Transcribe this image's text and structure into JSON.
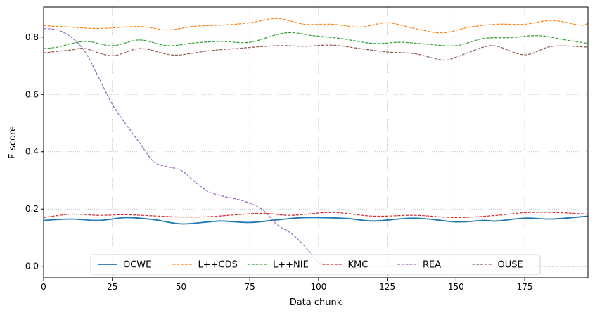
{
  "chart_data": {
    "type": "line",
    "xlabel": "Data chunk",
    "ylabel": "F-score",
    "xlim": [
      0,
      198
    ],
    "ylim": [
      -0.04,
      0.905
    ],
    "xticks": [
      0,
      25,
      50,
      75,
      100,
      125,
      150,
      175
    ],
    "yticks": [
      0.0,
      0.2,
      0.4,
      0.6,
      0.8
    ],
    "ytick_labels": [
      "0.0",
      "0.2",
      "0.4",
      "0.6",
      "0.8"
    ],
    "grid": true,
    "legend_position": "bottom-center",
    "series": [
      {
        "name": "OCWE",
        "color": "#1f77b4",
        "style": "solid",
        "points": [
          [
            0,
            0.16
          ],
          [
            10,
            0.165
          ],
          [
            20,
            0.16
          ],
          [
            30,
            0.17
          ],
          [
            40,
            0.163
          ],
          [
            50,
            0.148
          ],
          [
            60,
            0.155
          ],
          [
            65,
            0.158
          ],
          [
            75,
            0.153
          ],
          [
            85,
            0.162
          ],
          [
            95,
            0.17
          ],
          [
            110,
            0.167
          ],
          [
            120,
            0.158
          ],
          [
            135,
            0.168
          ],
          [
            150,
            0.155
          ],
          [
            160,
            0.16
          ],
          [
            165,
            0.158
          ],
          [
            175,
            0.168
          ],
          [
            185,
            0.165
          ],
          [
            198,
            0.175
          ]
        ]
      },
      {
        "name": "L++CDS",
        "color": "#ff7f0e",
        "style": "dashed",
        "points": [
          [
            0,
            0.84
          ],
          [
            10,
            0.835
          ],
          [
            20,
            0.83
          ],
          [
            35,
            0.837
          ],
          [
            45,
            0.825
          ],
          [
            55,
            0.838
          ],
          [
            65,
            0.842
          ],
          [
            75,
            0.85
          ],
          [
            85,
            0.865
          ],
          [
            95,
            0.845
          ],
          [
            105,
            0.845
          ],
          [
            115,
            0.835
          ],
          [
            125,
            0.85
          ],
          [
            135,
            0.83
          ],
          [
            145,
            0.815
          ],
          [
            155,
            0.835
          ],
          [
            165,
            0.845
          ],
          [
            175,
            0.845
          ],
          [
            185,
            0.858
          ],
          [
            195,
            0.842
          ],
          [
            198,
            0.848
          ]
        ]
      },
      {
        "name": "L++NIE",
        "color": "#2ca02c",
        "style": "dashed",
        "points": [
          [
            0,
            0.76
          ],
          [
            5,
            0.765
          ],
          [
            15,
            0.785
          ],
          [
            25,
            0.77
          ],
          [
            35,
            0.79
          ],
          [
            45,
            0.77
          ],
          [
            55,
            0.78
          ],
          [
            65,
            0.785
          ],
          [
            75,
            0.782
          ],
          [
            88,
            0.815
          ],
          [
            98,
            0.805
          ],
          [
            108,
            0.795
          ],
          [
            120,
            0.778
          ],
          [
            130,
            0.782
          ],
          [
            140,
            0.775
          ],
          [
            150,
            0.77
          ],
          [
            160,
            0.795
          ],
          [
            170,
            0.798
          ],
          [
            180,
            0.805
          ],
          [
            190,
            0.79
          ],
          [
            198,
            0.778
          ]
        ]
      },
      {
        "name": "KMC",
        "color": "#d62728",
        "style": "dashed",
        "points": [
          [
            0,
            0.17
          ],
          [
            10,
            0.182
          ],
          [
            20,
            0.178
          ],
          [
            30,
            0.18
          ],
          [
            40,
            0.176
          ],
          [
            50,
            0.172
          ],
          [
            60,
            0.173
          ],
          [
            70,
            0.18
          ],
          [
            80,
            0.185
          ],
          [
            90,
            0.178
          ],
          [
            105,
            0.188
          ],
          [
            120,
            0.175
          ],
          [
            135,
            0.178
          ],
          [
            150,
            0.17
          ],
          [
            165,
            0.178
          ],
          [
            175,
            0.187
          ],
          [
            185,
            0.188
          ],
          [
            198,
            0.182
          ]
        ]
      },
      {
        "name": "REA",
        "color": "#9467bd",
        "style": "dashed",
        "points": [
          [
            0,
            0.83
          ],
          [
            5,
            0.825
          ],
          [
            10,
            0.8
          ],
          [
            15,
            0.75
          ],
          [
            20,
            0.66
          ],
          [
            25,
            0.565
          ],
          [
            30,
            0.495
          ],
          [
            35,
            0.43
          ],
          [
            40,
            0.365
          ],
          [
            45,
            0.348
          ],
          [
            50,
            0.335
          ],
          [
            55,
            0.295
          ],
          [
            60,
            0.26
          ],
          [
            65,
            0.245
          ],
          [
            70,
            0.235
          ],
          [
            75,
            0.22
          ],
          [
            80,
            0.195
          ],
          [
            85,
            0.145
          ],
          [
            90,
            0.115
          ],
          [
            95,
            0.07
          ],
          [
            100,
            0.015
          ],
          [
            105,
            0.005
          ],
          [
            110,
            0.0
          ],
          [
            130,
            0.0
          ],
          [
            150,
            0.0
          ],
          [
            175,
            0.0
          ],
          [
            198,
            0.0
          ]
        ]
      },
      {
        "name": "OUSE",
        "color": "#8c564b",
        "style": "dashed",
        "points": [
          [
            0,
            0.745
          ],
          [
            10,
            0.755
          ],
          [
            15,
            0.76
          ],
          [
            25,
            0.735
          ],
          [
            35,
            0.76
          ],
          [
            45,
            0.74
          ],
          [
            50,
            0.738
          ],
          [
            60,
            0.752
          ],
          [
            70,
            0.76
          ],
          [
            85,
            0.77
          ],
          [
            95,
            0.768
          ],
          [
            105,
            0.772
          ],
          [
            115,
            0.76
          ],
          [
            125,
            0.748
          ],
          [
            135,
            0.742
          ],
          [
            145,
            0.72
          ],
          [
            150,
            0.73
          ],
          [
            160,
            0.765
          ],
          [
            165,
            0.768
          ],
          [
            175,
            0.738
          ],
          [
            185,
            0.768
          ],
          [
            198,
            0.765
          ]
        ]
      }
    ]
  }
}
